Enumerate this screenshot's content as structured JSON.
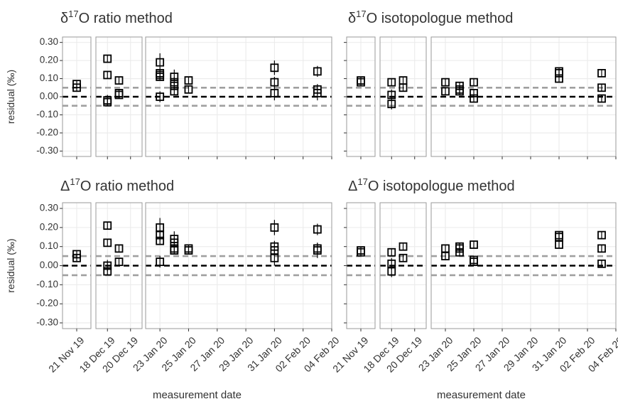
{
  "chart_data": [
    {
      "type": "scatter",
      "title": "δ17O ratio method",
      "ylabel": "residual (‰)",
      "ylim": [
        -0.33,
        0.33
      ],
      "yticks": [
        {
          "value": 0.3,
          "label": "0.30"
        },
        {
          "value": 0.2,
          "label": "0.20"
        },
        {
          "value": 0.1,
          "label": "0.10"
        },
        {
          "value": 0,
          "label": "0.00"
        },
        {
          "value": -0.1,
          "label": "-0.10"
        },
        {
          "value": -0.2,
          "label": "-0.20"
        },
        {
          "value": -0.3,
          "label": "-0.30"
        }
      ],
      "facets": [
        {
          "xlim": [
            "2019-11-20",
            "2019-11-22"
          ],
          "xticks": [
            "2019-11-21"
          ]
        },
        {
          "xlim": [
            "2019-12-17",
            "2019-12-21"
          ],
          "xticks": [
            "2019-12-18",
            "2019-12-20"
          ]
        },
        {
          "xlim": [
            "2020-01-22",
            "2020-02-04"
          ],
          "xticks": [
            "2020-01-23",
            "2020-01-25",
            "2020-01-27",
            "2020-01-29",
            "2020-01-31",
            "2020-02-02",
            "2020-02-04"
          ]
        }
      ],
      "reference_lines": [
        {
          "value": 0,
          "color": "#000000"
        },
        {
          "value": 0.05,
          "color": "#a0a0a0"
        },
        {
          "value": -0.05,
          "color": "#a0a0a0"
        }
      ],
      "grid": true,
      "series": [
        {
          "color": "#000000",
          "x": [
            "2019-11-21",
            "2019-11-21",
            "2019-12-18",
            "2019-12-18",
            "2019-12-18",
            "2019-12-18",
            "2019-12-19",
            "2019-12-19",
            "2019-12-19",
            "2020-01-23",
            "2020-01-23",
            "2020-01-23",
            "2020-01-23",
            "2020-01-23",
            "2020-01-24",
            "2020-01-24",
            "2020-01-24",
            "2020-01-24",
            "2020-01-25",
            "2020-01-25",
            "2020-01-31",
            "2020-01-31",
            "2020-01-31",
            "2020-02-03",
            "2020-02-03",
            "2020-02-03"
          ],
          "values": [
            0.07,
            0.05,
            0.21,
            0.12,
            -0.02,
            -0.03,
            0.09,
            0.02,
            0.01,
            0.12,
            0.11,
            0.13,
            0.19,
            0.0,
            0.11,
            0.08,
            0.03,
            0.06,
            0.09,
            0.04,
            0.16,
            0.08,
            0.02,
            0.14,
            0.04,
            0.02
          ],
          "errors": [
            0.02,
            0.02,
            0.02,
            0.02,
            0.03,
            0.02,
            0.02,
            0.02,
            0.02,
            0.03,
            0.02,
            0.02,
            0.05,
            0.03,
            0.04,
            0.03,
            0.02,
            0.02,
            0.02,
            0.02,
            0.04,
            0.03,
            0.04,
            0.03,
            0.03,
            0.04
          ]
        }
      ]
    },
    {
      "type": "scatter",
      "title": "δ17O isotopologue method",
      "ylim": [
        -0.33,
        0.33
      ],
      "yticks": [
        0.3,
        0.2,
        0.1,
        0,
        -0.1,
        -0.2,
        -0.3
      ],
      "facets": [
        {
          "xlim": [
            "2019-11-20",
            "2019-11-22"
          ],
          "xticks": [
            "2019-11-21"
          ]
        },
        {
          "xlim": [
            "2019-12-17",
            "2019-12-21"
          ],
          "xticks": [
            "2019-12-18",
            "2019-12-20"
          ]
        },
        {
          "xlim": [
            "2020-01-22",
            "2020-02-04"
          ],
          "xticks": [
            "2020-01-23",
            "2020-01-25",
            "2020-01-27",
            "2020-01-29",
            "2020-01-31",
            "2020-02-02",
            "2020-02-04"
          ]
        }
      ],
      "reference_lines": [
        {
          "value": 0,
          "color": "#000000"
        },
        {
          "value": 0.05,
          "color": "#a0a0a0"
        },
        {
          "value": -0.05,
          "color": "#a0a0a0"
        }
      ],
      "grid": true,
      "series": [
        {
          "color": "#000000",
          "x": [
            "2019-11-21",
            "2019-11-21",
            "2019-12-18",
            "2019-12-18",
            "2019-12-18",
            "2019-12-19",
            "2019-12-19",
            "2020-01-23",
            "2020-01-23",
            "2020-01-24",
            "2020-01-24",
            "2020-01-24",
            "2020-01-25",
            "2020-01-25",
            "2020-01-25",
            "2020-01-31",
            "2020-01-31",
            "2020-01-31",
            "2020-02-03",
            "2020-02-03",
            "2020-02-03"
          ],
          "values": [
            0.09,
            0.08,
            0.08,
            0.01,
            -0.04,
            0.05,
            0.09,
            0.08,
            0.03,
            0.06,
            0.03,
            0.04,
            0.08,
            0.02,
            -0.01,
            0.14,
            0.13,
            0.1,
            0.13,
            0.05,
            -0.01
          ],
          "errors": [
            0.02,
            0.02,
            0.02,
            0.03,
            0.03,
            0.02,
            0.02,
            0.02,
            0.02,
            0.02,
            0.02,
            0.02,
            0.02,
            0.02,
            0.02,
            0.02,
            0.02,
            0.02,
            0.02,
            0.02,
            0.02
          ]
        }
      ]
    },
    {
      "type": "scatter",
      "title": "Δ17O ratio method",
      "ylabel": "residual (‰)",
      "xlabel": "measurement date",
      "ylim": [
        -0.33,
        0.33
      ],
      "yticks": [
        {
          "value": 0.3,
          "label": "0.30"
        },
        {
          "value": 0.2,
          "label": "0.20"
        },
        {
          "value": 0.1,
          "label": "0.10"
        },
        {
          "value": 0,
          "label": "0.00"
        },
        {
          "value": -0.1,
          "label": "-0.10"
        },
        {
          "value": -0.2,
          "label": "-0.20"
        },
        {
          "value": -0.3,
          "label": "-0.30"
        }
      ],
      "facets": [
        {
          "xlim": [
            "2019-11-20",
            "2019-11-22"
          ],
          "xticks": [
            {
              "value": "2019-11-21",
              "label": "21 Nov 19"
            }
          ]
        },
        {
          "xlim": [
            "2019-12-17",
            "2019-12-21"
          ],
          "xticks": [
            {
              "value": "2019-12-18",
              "label": "18 Dec 19"
            },
            {
              "value": "2019-12-20",
              "label": "20 Dec 19"
            }
          ]
        },
        {
          "xlim": [
            "2020-01-22",
            "2020-02-04"
          ],
          "xticks": [
            {
              "value": "2020-01-23",
              "label": "23 Jan 20"
            },
            {
              "value": "2020-01-25",
              "label": "25 Jan 20"
            },
            {
              "value": "2020-01-27",
              "label": "27 Jan 20"
            },
            {
              "value": "2020-01-29",
              "label": "29 Jan 20"
            },
            {
              "value": "2020-01-31",
              "label": "31 Jan 20"
            },
            {
              "value": "2020-02-02",
              "label": "02 Feb 20"
            },
            {
              "value": "2020-02-04",
              "label": "04 Feb 20"
            }
          ]
        }
      ],
      "reference_lines": [
        {
          "value": 0,
          "color": "#000000"
        },
        {
          "value": 0.05,
          "color": "#a0a0a0"
        },
        {
          "value": -0.05,
          "color": "#a0a0a0"
        }
      ],
      "grid": true,
      "series": [
        {
          "color": "#000000",
          "x": [
            "2019-11-21",
            "2019-11-21",
            "2019-12-18",
            "2019-12-18",
            "2019-12-18",
            "2019-12-18",
            "2019-12-19",
            "2019-12-19",
            "2020-01-23",
            "2020-01-23",
            "2020-01-23",
            "2020-01-23",
            "2020-01-24",
            "2020-01-24",
            "2020-01-24",
            "2020-01-24",
            "2020-01-25",
            "2020-01-25",
            "2020-01-31",
            "2020-01-31",
            "2020-01-31",
            "2020-01-31",
            "2020-02-03",
            "2020-02-03",
            "2020-02-03"
          ],
          "values": [
            0.06,
            0.04,
            0.21,
            0.12,
            0.0,
            -0.03,
            0.09,
            0.02,
            0.16,
            0.13,
            0.2,
            0.02,
            0.14,
            0.12,
            0.08,
            0.09,
            0.09,
            0.08,
            0.2,
            0.1,
            0.08,
            0.04,
            0.19,
            0.09,
            0.08
          ],
          "errors": [
            0.02,
            0.02,
            0.02,
            0.02,
            0.03,
            0.02,
            0.02,
            0.02,
            0.03,
            0.02,
            0.05,
            0.03,
            0.04,
            0.03,
            0.02,
            0.02,
            0.02,
            0.02,
            0.04,
            0.03,
            0.03,
            0.04,
            0.03,
            0.03,
            0.04
          ]
        }
      ]
    },
    {
      "type": "scatter",
      "title": "Δ17O isotopologue method",
      "xlabel": "measurement date",
      "ylim": [
        -0.33,
        0.33
      ],
      "yticks": [
        0.3,
        0.2,
        0.1,
        0,
        -0.1,
        -0.2,
        -0.3
      ],
      "facets": [
        {
          "xlim": [
            "2019-11-20",
            "2019-11-22"
          ],
          "xticks": [
            {
              "value": "2019-11-21",
              "label": "21 Nov 19"
            }
          ]
        },
        {
          "xlim": [
            "2019-12-17",
            "2019-12-21"
          ],
          "xticks": [
            {
              "value": "2019-12-18",
              "label": "18 Dec 19"
            },
            {
              "value": "2019-12-20",
              "label": "20 Dec 19"
            }
          ]
        },
        {
          "xlim": [
            "2020-01-22",
            "2020-02-04"
          ],
          "xticks": [
            {
              "value": "2020-01-23",
              "label": "23 Jan 20"
            },
            {
              "value": "2020-01-25",
              "label": "25 Jan 20"
            },
            {
              "value": "2020-01-27",
              "label": "27 Jan 20"
            },
            {
              "value": "2020-01-29",
              "label": "29 Jan 20"
            },
            {
              "value": "2020-01-31",
              "label": "31 Jan 20"
            },
            {
              "value": "2020-02-02",
              "label": "02 Feb 20"
            },
            {
              "value": "2020-02-04",
              "label": "04 Feb 20"
            }
          ]
        }
      ],
      "reference_lines": [
        {
          "value": 0,
          "color": "#000000"
        },
        {
          "value": 0.05,
          "color": "#a0a0a0"
        },
        {
          "value": -0.05,
          "color": "#a0a0a0"
        }
      ],
      "grid": true,
      "series": [
        {
          "color": "#000000",
          "x": [
            "2019-11-21",
            "2019-11-21",
            "2019-12-18",
            "2019-12-18",
            "2019-12-18",
            "2019-12-19",
            "2019-12-19",
            "2020-01-23",
            "2020-01-23",
            "2020-01-24",
            "2020-01-24",
            "2020-01-24",
            "2020-01-25",
            "2020-01-25",
            "2020-01-25",
            "2020-01-31",
            "2020-01-31",
            "2020-01-31",
            "2020-02-03",
            "2020-02-03",
            "2020-02-03"
          ],
          "values": [
            0.08,
            0.07,
            0.07,
            0.01,
            -0.03,
            0.04,
            0.1,
            0.09,
            0.05,
            0.09,
            0.07,
            0.1,
            0.11,
            0.03,
            0.02,
            0.16,
            0.15,
            0.11,
            0.16,
            0.09,
            0.01
          ],
          "errors": [
            0.02,
            0.02,
            0.02,
            0.03,
            0.03,
            0.02,
            0.02,
            0.02,
            0.02,
            0.02,
            0.02,
            0.02,
            0.02,
            0.02,
            0.02,
            0.02,
            0.02,
            0.02,
            0.02,
            0.02,
            0.02
          ]
        }
      ]
    }
  ]
}
